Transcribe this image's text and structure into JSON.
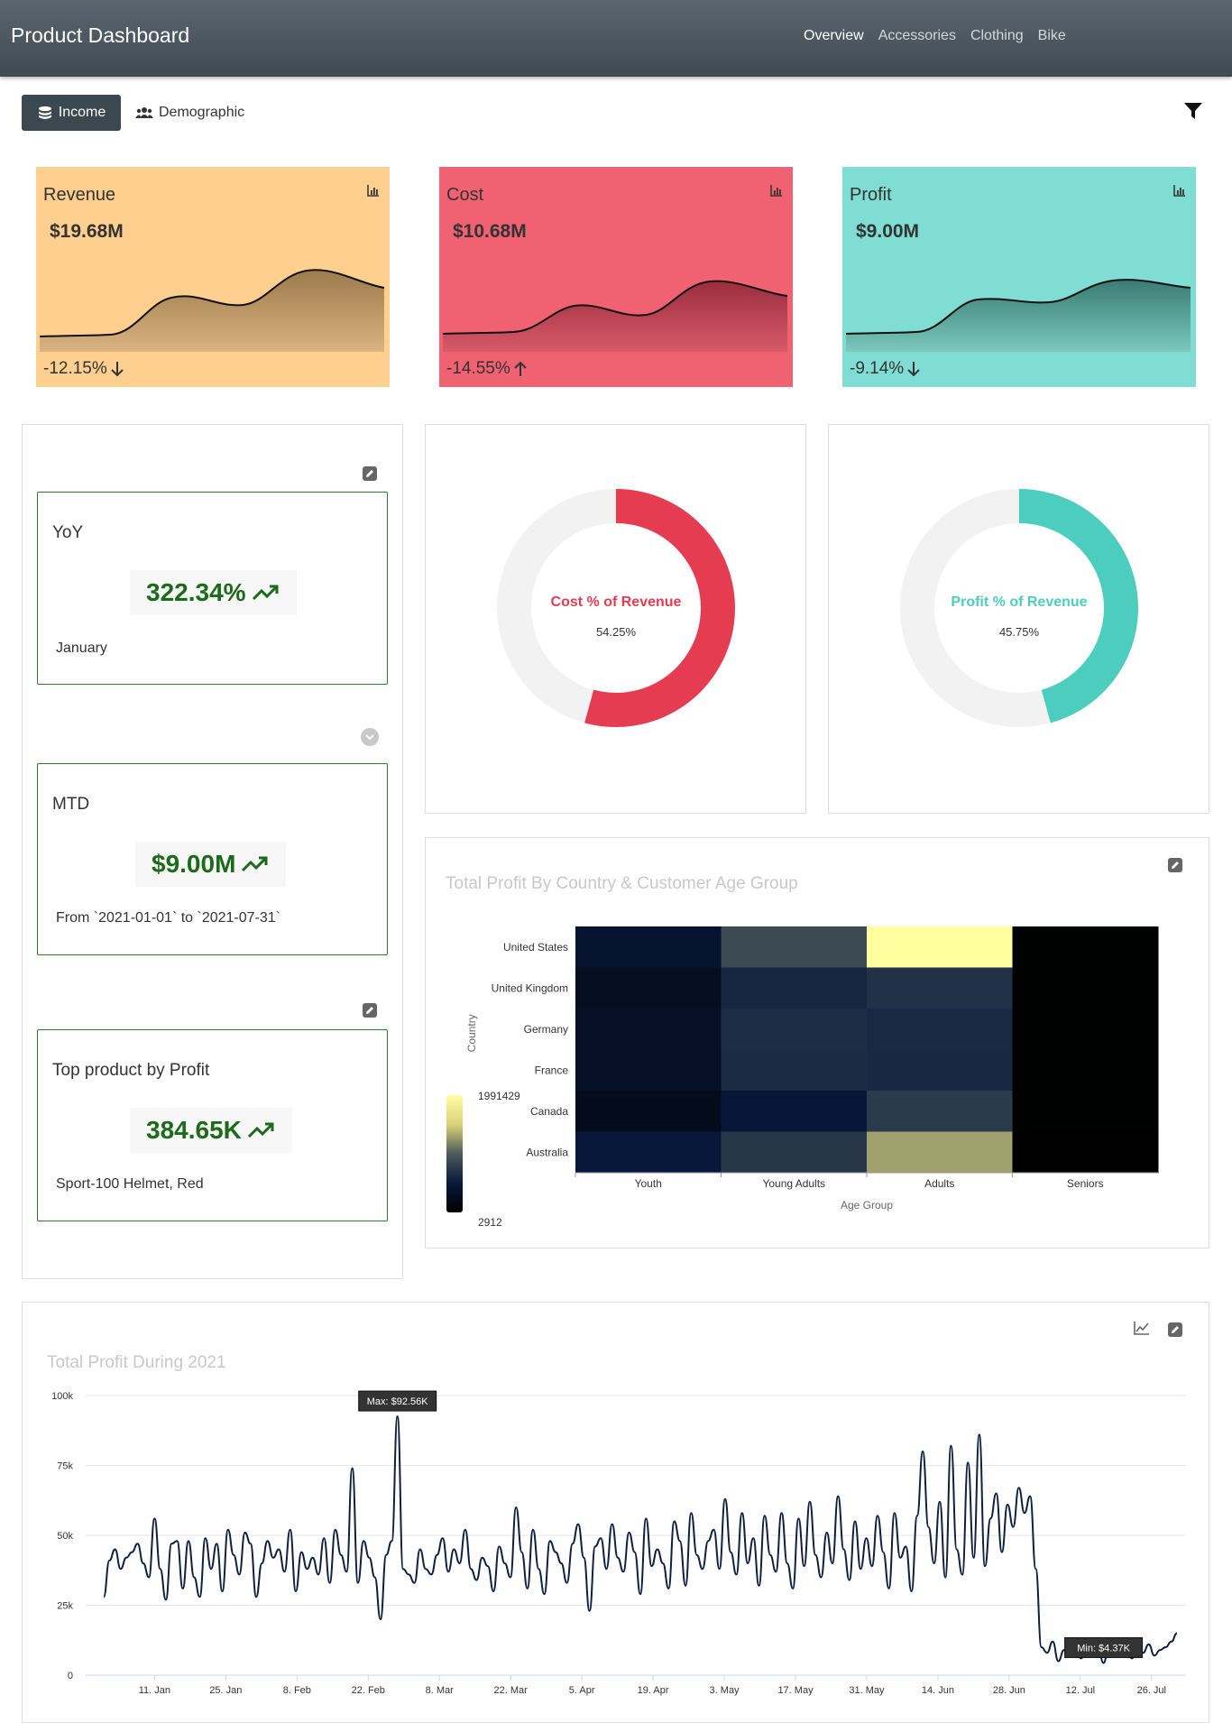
{
  "header": {
    "title": "Product Dashboard",
    "nav": [
      "Overview",
      "Accessories",
      "Clothing",
      "Bike"
    ],
    "active_nav": "Overview"
  },
  "tabs": {
    "income": "Income",
    "demographic": "Demographic"
  },
  "kpis": [
    {
      "title": "Revenue",
      "value": "$19.68M",
      "change": "-12.15%",
      "arrow": "down",
      "color": "#fecf8f"
    },
    {
      "title": "Cost",
      "value": "$10.68M",
      "change": "-14.55%",
      "arrow": "up",
      "color": "#f06272"
    },
    {
      "title": "Profit",
      "value": "$9.00M",
      "change": "-9.14%",
      "arrow": "down",
      "color": "#80ddd3"
    }
  ],
  "metrics": {
    "yoy": {
      "title": "YoY",
      "value": "322.34%",
      "sub": "January"
    },
    "mtd": {
      "title": "MTD",
      "value": "$9.00M",
      "sub": "From `2021-01-01` to `2021-07-31`"
    },
    "top": {
      "title": "Top product by Profit",
      "value": "384.65K",
      "sub": "Sport-100 Helmet, Red"
    }
  },
  "donuts": {
    "cost": {
      "label": "Cost % of Revenue",
      "value": "54.25%",
      "fraction": 0.5425,
      "color": "#e63c52"
    },
    "profit": {
      "label": "Profit % of Revenue",
      "value": "45.75%",
      "fraction": 0.4575,
      "color": "#4ccdbd"
    }
  },
  "colors": {
    "header": "#4a545c",
    "card_border": "#2e7d32",
    "metric_value": "#1b6b1b",
    "line": "#0d2040"
  },
  "heatmap": {
    "title": "Total Profit By Country & Customer Age Group",
    "chart_data": {
      "type": "heatmap",
      "title": "Total Profit By Country & Customer Age Group",
      "xlabel": "Age Group",
      "ylabel": "Country",
      "x_categories": [
        "Youth",
        "Young Adults",
        "Adults",
        "Seniors"
      ],
      "y_categories": [
        "United States",
        "United Kingdom",
        "Germany",
        "France",
        "Canada",
        "Australia"
      ],
      "colorbar_max": "1991429",
      "colorbar_min": "2912",
      "values": [
        [
          60000,
          420000,
          1991429,
          3000
        ],
        [
          40000,
          160000,
          230000,
          3000
        ],
        [
          45000,
          200000,
          180000,
          3000
        ],
        [
          42000,
          190000,
          170000,
          3000
        ],
        [
          25000,
          80000,
          300000,
          3000
        ],
        [
          90000,
          260000,
          950000,
          2912
        ]
      ]
    }
  },
  "linechart": {
    "title": "Total Profit During 2021",
    "max_label": "Max: $92.56K",
    "min_label": "Min: $4.37K",
    "chart_data": {
      "type": "line",
      "title": "Total Profit During 2021",
      "y_ticks": [
        "0",
        "25k",
        "50k",
        "75k",
        "100k"
      ],
      "ylim": [
        0,
        100000
      ],
      "x_ticks": [
        "11. Jan",
        "25. Jan",
        "8. Feb",
        "22. Feb",
        "8. Mar",
        "22. Mar",
        "5. Apr",
        "19. Apr",
        "3. May",
        "17. May",
        "31. May",
        "14. Jun",
        "28. Jun",
        "12. Jul",
        "26. Jul"
      ],
      "x_start": "2021-01-01",
      "x_end": "2021-07-31",
      "values": [
        28000,
        41000,
        45000,
        38000,
        42000,
        44000,
        47000,
        40000,
        35000,
        56000,
        38000,
        27000,
        47000,
        48000,
        31000,
        48000,
        35000,
        28000,
        49000,
        38000,
        47000,
        30000,
        52000,
        43000,
        36000,
        51000,
        47000,
        28000,
        40000,
        48000,
        42000,
        45000,
        37000,
        52000,
        30000,
        44000,
        38000,
        42000,
        36000,
        49000,
        33000,
        52000,
        43000,
        37000,
        74000,
        33000,
        48000,
        42000,
        35000,
        20000,
        43000,
        48000,
        92560,
        38000,
        36000,
        33000,
        45000,
        38000,
        36000,
        43000,
        49000,
        37000,
        45000,
        40000,
        52000,
        38000,
        34000,
        42000,
        39000,
        30000,
        46000,
        40000,
        35000,
        60000,
        44000,
        31000,
        52000,
        38000,
        29000,
        48000,
        44000,
        40000,
        33000,
        47000,
        54000,
        42000,
        23000,
        46000,
        49000,
        38000,
        54000,
        42000,
        37000,
        51000,
        44000,
        29000,
        56000,
        39000,
        45000,
        40000,
        31000,
        55000,
        48000,
        32000,
        58000,
        43000,
        38000,
        48000,
        52000,
        38000,
        63000,
        44000,
        36000,
        58000,
        40000,
        49000,
        32000,
        57000,
        43000,
        37000,
        58000,
        40000,
        31000,
        56000,
        39000,
        62000,
        43000,
        35000,
        51000,
        40000,
        64000,
        45000,
        34000,
        55000,
        38000,
        49000,
        39000,
        57000,
        44000,
        31000,
        58000,
        42000,
        46000,
        30000,
        57000,
        80000,
        53000,
        40000,
        62000,
        35000,
        82000,
        45000,
        36000,
        76000,
        42000,
        86000,
        39000,
        56000,
        65000,
        44000,
        61000,
        53000,
        67000,
        58000,
        64000,
        38000,
        10000,
        8000,
        12000,
        5000,
        9000,
        7000,
        11000,
        6000,
        9000,
        8000,
        10000,
        4370,
        11000,
        7000,
        9000,
        12000,
        6000,
        10000,
        8000,
        11000,
        7000,
        9000,
        10000,
        12000,
        15000
      ]
    }
  }
}
